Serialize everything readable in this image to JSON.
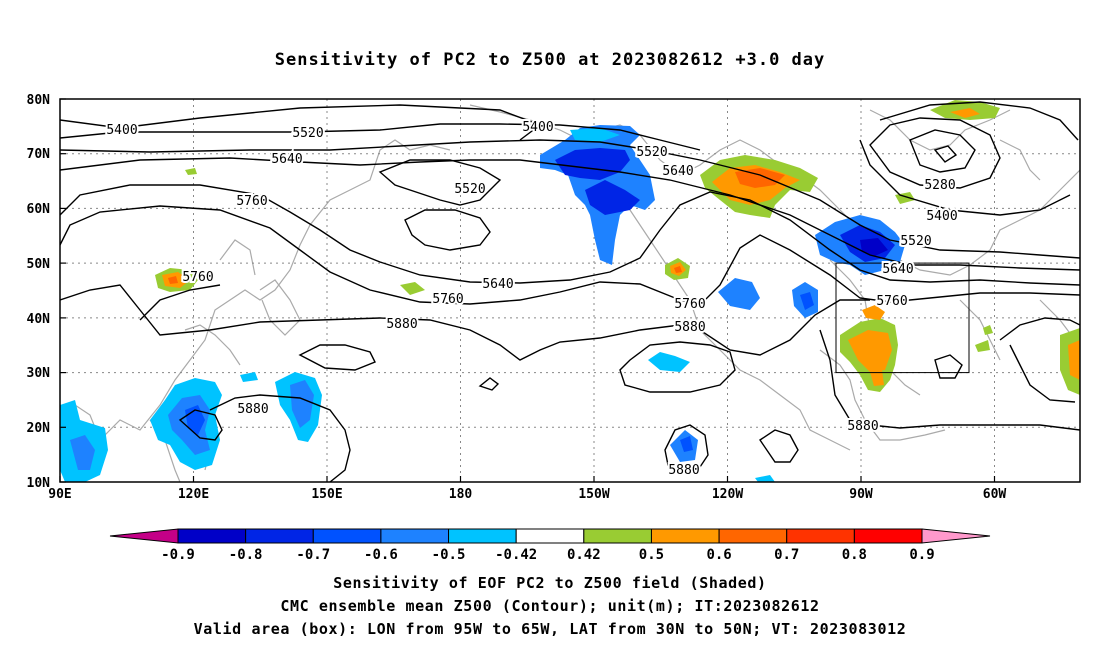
{
  "title": "Sensitivity of PC2 to Z500 at 2023082612 +3.0 day",
  "map": {
    "lat_labels": [
      "80N",
      "70N",
      "60N",
      "50N",
      "40N",
      "30N",
      "20N",
      "10N"
    ],
    "lon_labels": [
      "90E",
      "120E",
      "150E",
      "180",
      "150W",
      "120W",
      "90W",
      "60W"
    ],
    "contour_labels": [
      {
        "text": "5400"
      },
      {
        "text": "5520"
      },
      {
        "text": "5640"
      },
      {
        "text": "5760"
      },
      {
        "text": "5400"
      },
      {
        "text": "5520"
      },
      {
        "text": "5520"
      },
      {
        "text": "5640"
      },
      {
        "text": "5280"
      },
      {
        "text": "5400"
      },
      {
        "text": "5520"
      },
      {
        "text": "5640"
      },
      {
        "text": "5760"
      },
      {
        "text": "5640"
      },
      {
        "text": "5760"
      },
      {
        "text": "5880"
      },
      {
        "text": "5760"
      },
      {
        "text": "5880"
      },
      {
        "text": "5760"
      },
      {
        "text": "5880"
      },
      {
        "text": "5880"
      },
      {
        "text": "5880"
      }
    ],
    "valid_box": {
      "lon_from": "95W",
      "lon_to": "65W",
      "lat_from": "30N",
      "lat_to": "50N"
    }
  },
  "colorbar": {
    "colors": [
      "#c40087",
      "#0000c8",
      "#0025e6",
      "#0052ff",
      "#1e82ff",
      "#00c3ff",
      "#ffffff",
      "#99cc33",
      "#ff9900",
      "#ff6600",
      "#ff3300",
      "#ff0000",
      "#ff99cc"
    ],
    "labels": [
      "-0.9",
      "-0.8",
      "-0.7",
      "-0.6",
      "-0.5",
      "-0.42",
      "0.42",
      "0.5",
      "0.6",
      "0.7",
      "0.8",
      "0.9"
    ]
  },
  "caption": {
    "line1": "Sensitivity of EOF PC2 to Z500 field (Shaded)",
    "line2": "CMC ensemble mean Z500 (Contour); unit(m); IT:2023082612",
    "line3": "Valid area (box): LON from 95W to 65W, LAT from 30N to 50N; VT: 2023083012"
  }
}
